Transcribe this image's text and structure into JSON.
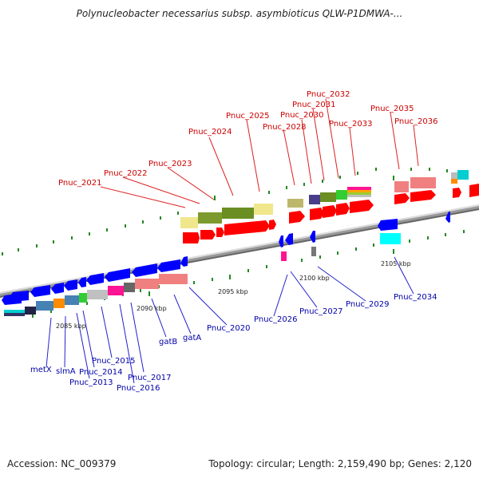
{
  "title": "Polynucleobacter necessarius subsp. asymbioticus QLW-P1DMWA-...",
  "footer": {
    "accession": "Accession: NC_009379",
    "summary": "Topology: circular; Length: 2,159,490 bp; Genes: 2,120"
  },
  "kbp_labels": [
    {
      "text": "2085 kbp"
    },
    {
      "text": "2090 kbp"
    },
    {
      "text": "2095 kbp"
    },
    {
      "text": "2100 kbp"
    },
    {
      "text": "2105 kbp"
    }
  ],
  "top_labels": [
    {
      "text": "Pnuc_2021"
    },
    {
      "text": "Pnuc_2022"
    },
    {
      "text": "Pnuc_2023"
    },
    {
      "text": "Pnuc_2024"
    },
    {
      "text": "Pnuc_2025"
    },
    {
      "text": "Pnuc_2028"
    },
    {
      "text": "Pnuc_2030"
    },
    {
      "text": "Pnuc_2031"
    },
    {
      "text": "Pnuc_2032"
    },
    {
      "text": "Pnuc_2033"
    },
    {
      "text": "Pnuc_2035"
    },
    {
      "text": "Pnuc_2036"
    }
  ],
  "bottom_labels": [
    {
      "text": "metX"
    },
    {
      "text": "slmA"
    },
    {
      "text": "Pnuc_2013"
    },
    {
      "text": "Pnuc_2014"
    },
    {
      "text": "Pnuc_2015"
    },
    {
      "text": "Pnuc_2016"
    },
    {
      "text": "Pnuc_2017"
    },
    {
      "text": "gatB"
    },
    {
      "text": "gatA"
    },
    {
      "text": "Pnuc_2020"
    },
    {
      "text": "Pnuc_2026"
    },
    {
      "text": "Pnuc_2027"
    },
    {
      "text": "Pnuc_2029"
    },
    {
      "text": "Pnuc_2034"
    }
  ],
  "colors": {
    "forward_gene": "#ff0000",
    "reverse_gene": "#0000ff",
    "top_label": "#cc0000",
    "bottom_label": "#0000aa",
    "axis": "#888888",
    "tick": "#228822"
  }
}
